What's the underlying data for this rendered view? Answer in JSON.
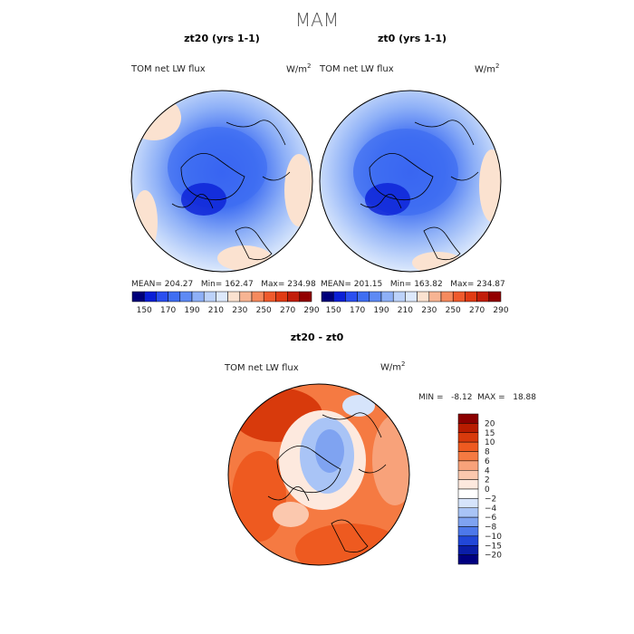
{
  "figure": {
    "title": "MAM",
    "panels": [
      {
        "title": "zt20 (yrs 1-1)",
        "variable": "TOM net LW flux",
        "units": "W/m",
        "units_sup": "2",
        "stats": "MEAN= 204.27   Min= 162.47   Max= 234.98"
      },
      {
        "title": "zt0 (yrs 1-1)",
        "variable": "TOM net LW flux",
        "units": "W/m",
        "units_sup": "2",
        "stats": "MEAN= 201.15   Min= 163.82   Max= 234.87"
      }
    ],
    "top_colorbar": {
      "labels": [
        "150",
        "170",
        "190",
        "210",
        "230",
        "250",
        "270",
        "290"
      ],
      "colors": [
        "#00007a",
        "#0a1fd6",
        "#2a4ff0",
        "#3f6ef2",
        "#5e8af4",
        "#8eb0f7",
        "#bcd2fa",
        "#dde9fc",
        "#fbe2d0",
        "#f7b493",
        "#f58a5e",
        "#ef5a2c",
        "#e03b14",
        "#c21e0a",
        "#920000"
      ]
    },
    "diff_panel": {
      "title": "zt20 - zt0",
      "variable": "TOM net LW flux",
      "units": "W/m",
      "units_sup": "2",
      "stats": "MIN =   -8.12  MAX =   18.88",
      "colorbar_labels": [
        "20",
        "15",
        "10",
        "8",
        "6",
        "4",
        "2",
        "0",
        "−2",
        "−4",
        "−6",
        "−8",
        "−10",
        "−15",
        "−20"
      ],
      "colorbar_colors": [
        "#8b0000",
        "#b81c00",
        "#d83a0c",
        "#ee5a20",
        "#f57a42",
        "#f8a27a",
        "#fbc8ae",
        "#fde9de",
        "#ffffff",
        "#d6e4fb",
        "#a9c4f6",
        "#7fa3f1",
        "#4d78ea",
        "#2147d8",
        "#0a1ea8",
        "#000080"
      ]
    }
  }
}
